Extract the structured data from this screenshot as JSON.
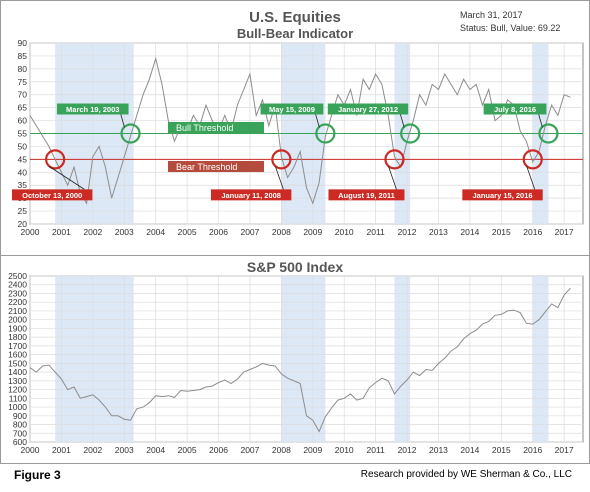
{
  "colors": {
    "plot_bg": "#ffffff",
    "grid": "#dcdcdc",
    "band": "#dde8f6",
    "line": "#8c8c8c",
    "bull": "#3aa35a",
    "bear": "#cc2a22",
    "title": "#555555"
  },
  "charts": {
    "top": {
      "title": "U.S. Equities",
      "subtitle": "Bull-Bear Indicator",
      "date_text": "March 31, 2017",
      "status_text": "Status: Bull, Value: 69.22",
      "bull_label": "Bull Threshold",
      "bear_label": "Bear Threshold"
    },
    "bottom": {
      "title": "S&P 500 Index"
    }
  },
  "footer": {
    "figure": "Figure 3",
    "credit": "Research provided by  WE Sherman & Co., LLC"
  },
  "chart_data": [
    {
      "type": "line",
      "title": "U.S. Equities",
      "subtitle": "Bull-Bear Indicator",
      "xlim": [
        2000,
        2017.6
      ],
      "ylim": [
        20,
        90
      ],
      "xticks": [
        "2000",
        "2001",
        "2002",
        "2003",
        "2004",
        "2005",
        "2006",
        "2007",
        "2008",
        "2009",
        "2010",
        "2011",
        "2012",
        "2013",
        "2014",
        "2015",
        "2016",
        "2017"
      ],
      "yticks": [
        "20",
        "25",
        "30",
        "35",
        "40",
        "45",
        "50",
        "55",
        "60",
        "65",
        "70",
        "75",
        "80",
        "85",
        "90"
      ],
      "grid": true,
      "thresholds": [
        {
          "name": "Bull Threshold",
          "value": 55
        },
        {
          "name": "Bear Threshold",
          "value": 45
        }
      ],
      "shaded_ranges": [
        [
          2000.8,
          2003.3
        ],
        [
          2008.0,
          2009.4
        ],
        [
          2011.6,
          2012.1
        ],
        [
          2016.0,
          2016.5
        ]
      ],
      "annotations": [
        {
          "text": "October 13, 2000",
          "x": 2000.8,
          "y": 45,
          "kind": "bear"
        },
        {
          "text": "March 19, 2003",
          "x": 2003.2,
          "y": 55,
          "kind": "bull"
        },
        {
          "text": "January 11, 2008",
          "x": 2008.0,
          "y": 45,
          "kind": "bear"
        },
        {
          "text": "May 15, 2009",
          "x": 2009.4,
          "y": 55,
          "kind": "bull"
        },
        {
          "text": "August 19, 2011",
          "x": 2011.6,
          "y": 45,
          "kind": "bear"
        },
        {
          "text": "January 27, 2012",
          "x": 2012.1,
          "y": 55,
          "kind": "bull"
        },
        {
          "text": "January 15, 2016",
          "x": 2016.0,
          "y": 45,
          "kind": "bear"
        },
        {
          "text": "July 8, 2016",
          "x": 2016.5,
          "y": 55,
          "kind": "bull"
        }
      ],
      "series": [
        {
          "x": [
            2000.0,
            2000.2,
            2000.4,
            2000.6,
            2000.8,
            2001.0,
            2001.2,
            2001.4,
            2001.6,
            2001.8,
            2002.0,
            2002.2,
            2002.4,
            2002.6,
            2002.8,
            2003.0,
            2003.2,
            2003.4,
            2003.6,
            2003.8,
            2004.0,
            2004.2,
            2004.4,
            2004.6,
            2004.8,
            2005.0,
            2005.2,
            2005.4,
            2005.6,
            2005.8,
            2006.0,
            2006.2,
            2006.4,
            2006.6,
            2006.8,
            2007.0,
            2007.2,
            2007.4,
            2007.6,
            2007.8,
            2008.0,
            2008.2,
            2008.4,
            2008.6,
            2008.8,
            2009.0,
            2009.2,
            2009.4,
            2009.6,
            2009.8,
            2010.0,
            2010.2,
            2010.4,
            2010.6,
            2010.8,
            2011.0,
            2011.2,
            2011.4,
            2011.6,
            2011.8,
            2012.0,
            2012.2,
            2012.4,
            2012.6,
            2012.8,
            2013.0,
            2013.2,
            2013.4,
            2013.6,
            2013.8,
            2014.0,
            2014.2,
            2014.4,
            2014.6,
            2014.8,
            2015.0,
            2015.2,
            2015.4,
            2015.6,
            2015.8,
            2016.0,
            2016.2,
            2016.4,
            2016.6,
            2016.8,
            2017.0,
            2017.2
          ],
          "y": [
            62,
            58,
            54,
            50,
            45,
            40,
            35,
            42,
            32,
            28,
            46,
            50,
            42,
            30,
            38,
            46,
            54,
            62,
            70,
            76,
            84,
            74,
            60,
            52,
            58,
            56,
            62,
            58,
            66,
            60,
            56,
            62,
            56,
            66,
            72,
            78,
            62,
            68,
            58,
            66,
            46,
            38,
            42,
            48,
            34,
            28,
            36,
            54,
            62,
            70,
            66,
            72,
            62,
            76,
            72,
            78,
            74,
            62,
            46,
            42,
            52,
            60,
            70,
            66,
            74,
            72,
            78,
            74,
            70,
            76,
            72,
            74,
            66,
            72,
            60,
            62,
            68,
            66,
            56,
            52,
            44,
            48,
            58,
            66,
            62,
            70,
            69
          ]
        }
      ]
    },
    {
      "type": "line",
      "title": "S&P 500 Index",
      "xlim": [
        2000,
        2017.6
      ],
      "ylim": [
        600,
        2500
      ],
      "xticks": [
        "2000",
        "2001",
        "2002",
        "2003",
        "2004",
        "2005",
        "2006",
        "2007",
        "2008",
        "2009",
        "2010",
        "2011",
        "2012",
        "2013",
        "2014",
        "2015",
        "2016",
        "2017"
      ],
      "yticks": [
        "600",
        "700",
        "800",
        "900",
        "1000",
        "1100",
        "1200",
        "1300",
        "1400",
        "1500",
        "1600",
        "1700",
        "1800",
        "1900",
        "2000",
        "2100",
        "2200",
        "2300",
        "2400",
        "2500"
      ],
      "grid": true,
      "shaded_ranges": [
        [
          2000.8,
          2003.3
        ],
        [
          2008.0,
          2009.4
        ],
        [
          2011.6,
          2012.1
        ],
        [
          2016.0,
          2016.5
        ]
      ],
      "series": [
        {
          "x": [
            2000.0,
            2000.2,
            2000.4,
            2000.6,
            2000.8,
            2001.0,
            2001.2,
            2001.4,
            2001.6,
            2001.8,
            2002.0,
            2002.2,
            2002.4,
            2002.6,
            2002.8,
            2003.0,
            2003.2,
            2003.4,
            2003.6,
            2003.8,
            2004.0,
            2004.2,
            2004.4,
            2004.6,
            2004.8,
            2005.0,
            2005.2,
            2005.4,
            2005.6,
            2005.8,
            2006.0,
            2006.2,
            2006.4,
            2006.6,
            2006.8,
            2007.0,
            2007.2,
            2007.4,
            2007.6,
            2007.8,
            2008.0,
            2008.2,
            2008.4,
            2008.6,
            2008.8,
            2009.0,
            2009.2,
            2009.4,
            2009.6,
            2009.8,
            2010.0,
            2010.2,
            2010.4,
            2010.6,
            2010.8,
            2011.0,
            2011.2,
            2011.4,
            2011.6,
            2011.8,
            2012.0,
            2012.2,
            2012.4,
            2012.6,
            2012.8,
            2013.0,
            2013.2,
            2013.4,
            2013.6,
            2013.8,
            2014.0,
            2014.2,
            2014.4,
            2014.6,
            2014.8,
            2015.0,
            2015.2,
            2015.4,
            2015.6,
            2015.8,
            2016.0,
            2016.2,
            2016.4,
            2016.6,
            2016.8,
            2017.0,
            2017.2
          ],
          "y": [
            1450,
            1400,
            1470,
            1480,
            1400,
            1320,
            1200,
            1230,
            1100,
            1120,
            1140,
            1080,
            1000,
            900,
            900,
            860,
            850,
            980,
            1000,
            1050,
            1130,
            1120,
            1130,
            1110,
            1190,
            1180,
            1190,
            1200,
            1230,
            1240,
            1280,
            1310,
            1270,
            1320,
            1400,
            1430,
            1460,
            1500,
            1480,
            1470,
            1380,
            1330,
            1300,
            1270,
            900,
            850,
            720,
            890,
            990,
            1080,
            1100,
            1150,
            1080,
            1100,
            1220,
            1280,
            1330,
            1300,
            1150,
            1240,
            1310,
            1400,
            1360,
            1430,
            1420,
            1500,
            1560,
            1640,
            1690,
            1780,
            1840,
            1880,
            1950,
            1980,
            2050,
            2060,
            2100,
            2110,
            2080,
            1960,
            1950,
            2000,
            2090,
            2180,
            2140,
            2280,
            2360
          ]
        }
      ]
    }
  ]
}
